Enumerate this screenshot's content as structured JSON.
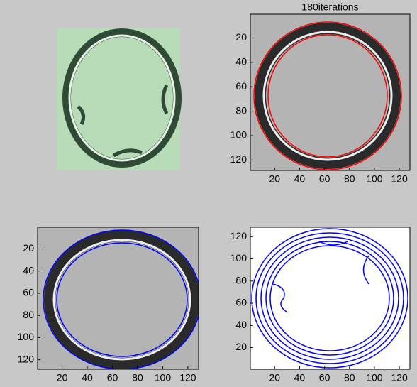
{
  "figure": {
    "panels": [
      {
        "title": "180iterations",
        "xlim": [
          0.5,
          128.5
        ],
        "ylim": [
          0.5,
          128.5
        ],
        "xticks": [
          20,
          40,
          60,
          80,
          100,
          120
        ],
        "yticks": [
          20,
          40,
          60,
          80,
          100,
          120
        ],
        "y_reversed": true
      },
      {
        "xlim": [
          0.5,
          128.5
        ],
        "ylim": [
          0.5,
          128.5
        ],
        "xticks": [
          20,
          40,
          60,
          80,
          100,
          120
        ],
        "yticks": [
          20,
          40,
          60,
          80,
          100,
          120
        ],
        "y_reversed": true
      },
      {
        "xlim": [
          0.5,
          128.5
        ],
        "ylim": [
          0.5,
          128.5
        ],
        "xticks": [
          20,
          40,
          60,
          80,
          100,
          120
        ],
        "yticks": [
          20,
          40,
          60,
          80,
          100,
          120
        ],
        "y_reversed": false
      }
    ]
  }
}
